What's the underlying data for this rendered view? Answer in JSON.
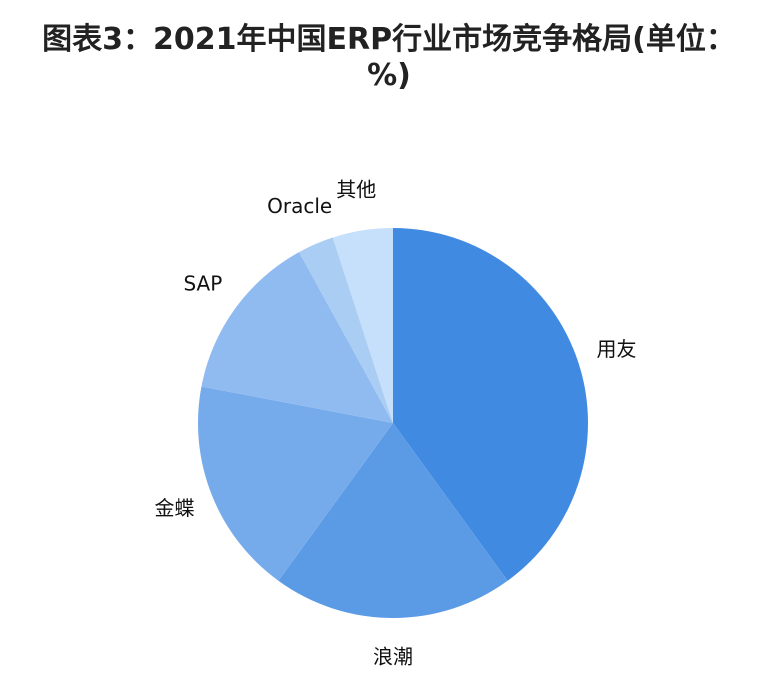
{
  "chart_data": {
    "type": "pie",
    "title": "图表3：2021年中国ERP行业市场竞争格局(单位：%)",
    "categories": [
      "用友",
      "浪潮",
      "金蝶",
      "SAP",
      "Oracle",
      "其他"
    ],
    "values": [
      40,
      20,
      18,
      14,
      3,
      5
    ],
    "colors": [
      "#418ae2",
      "#5b9be6",
      "#76abeb",
      "#90bbf0",
      "#aacdf4",
      "#c6dffa"
    ]
  }
}
